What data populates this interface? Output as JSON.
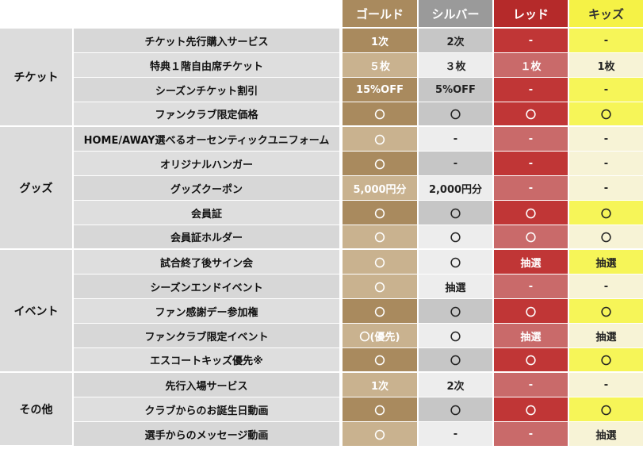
{
  "columns": [
    "ゴールド",
    "シルバー",
    "レッド",
    "キッズ"
  ],
  "colors": {
    "gold": "#a98a5e",
    "silver": "#9a9a9a",
    "red": "#b52a2a",
    "kids": "#f5f246"
  },
  "categories": {
    "ticket": "チケット",
    "goods": "グッズ",
    "event": "イベント",
    "other": "その他"
  },
  "rows": [
    {
      "item": "チケット先行購入サービス",
      "values": [
        "1次",
        "2次",
        "-",
        "-"
      ]
    },
    {
      "item": "特典１階自由席チケット",
      "values": [
        "５枚",
        "３枚",
        "１枚",
        "1枚"
      ]
    },
    {
      "item": "シーズンチケット割引",
      "values": [
        "15%OFF",
        "5%OFF",
        "-",
        "-"
      ]
    },
    {
      "item": "ファンクラブ限定価格",
      "values": [
        "〇",
        "〇",
        "〇",
        "〇"
      ]
    },
    {
      "item": "HOME/AWAY選べるオーセンティックユニフォーム",
      "values": [
        "〇",
        "-",
        "-",
        "-"
      ]
    },
    {
      "item": "オリジナルハンガー",
      "values": [
        "〇",
        "-",
        "-",
        "-"
      ]
    },
    {
      "item": "グッズクーポン",
      "values": [
        "5,000円分",
        "2,000円分",
        "-",
        "-"
      ]
    },
    {
      "item": "会員証",
      "values": [
        "〇",
        "〇",
        "〇",
        "〇"
      ]
    },
    {
      "item": "会員証ホルダー",
      "values": [
        "〇",
        "〇",
        "〇",
        "〇"
      ]
    },
    {
      "item": "試合終了後サイン会",
      "values": [
        "〇",
        "〇",
        "抽選",
        "抽選"
      ]
    },
    {
      "item": "シーズンエンドイベント",
      "values": [
        "〇",
        "抽選",
        "-",
        "-"
      ]
    },
    {
      "item": "ファン感謝デー参加権",
      "values": [
        "〇",
        "〇",
        "〇",
        "〇"
      ]
    },
    {
      "item": "ファンクラブ限定イベント",
      "values": [
        "〇(優先)",
        "〇",
        "抽選",
        "抽選"
      ]
    },
    {
      "item": "エスコートキッズ優先※",
      "values": [
        "〇",
        "〇",
        "〇",
        "〇"
      ]
    },
    {
      "item": "先行入場サービス",
      "values": [
        "1次",
        "2次",
        "-",
        "-"
      ]
    },
    {
      "item": "クラブからのお誕生日動画",
      "values": [
        "〇",
        "〇",
        "〇",
        "〇"
      ]
    },
    {
      "item": "選手からのメッセージ動画",
      "values": [
        "〇",
        "-",
        "-",
        "抽選"
      ]
    }
  ]
}
